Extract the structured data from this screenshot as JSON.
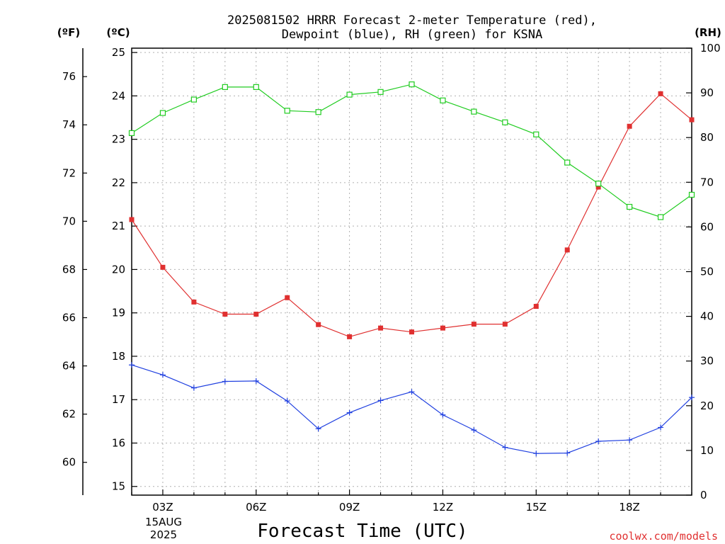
{
  "title_line1": "2025081502 HRRR Forecast 2-meter Temperature (red),",
  "title_line2": "Dewpoint (blue), RH (green) for KSNA",
  "unit_f": "(ºF)",
  "unit_c": "(ºC)",
  "unit_rh": "(RH)",
  "date_day": "15AUG",
  "date_year": "2025",
  "credit": "coolwx.com/models",
  "colors": {
    "temperature": "#e03030",
    "dewpoint": "#2040e0",
    "rh": "#20cc20",
    "grid": "#b0b0b0"
  },
  "chart_data": {
    "type": "line",
    "title": "2025081502 HRRR Forecast 2-meter Temperature (red), Dewpoint (blue), RH (green) for KSNA",
    "xlabel": "Forecast Time (UTC)",
    "x": [
      "02Z",
      "03Z",
      "04Z",
      "05Z",
      "06Z",
      "07Z",
      "08Z",
      "09Z",
      "10Z",
      "11Z",
      "12Z",
      "13Z",
      "14Z",
      "15Z",
      "16Z",
      "17Z",
      "18Z",
      "19Z",
      "20Z"
    ],
    "x_tick_labels": [
      "03Z",
      "06Z",
      "09Z",
      "12Z",
      "15Z",
      "18Z"
    ],
    "y_left_c": {
      "ylim": [
        14.8,
        25.1
      ],
      "ticks": [
        15,
        16,
        17,
        18,
        19,
        20,
        21,
        22,
        23,
        24,
        25
      ]
    },
    "y_left_f": {
      "ticks": [
        60,
        62,
        64,
        66,
        68,
        70,
        72,
        74,
        76
      ]
    },
    "y_right_rh": {
      "ylim": [
        0,
        100
      ],
      "ticks": [
        0,
        10,
        20,
        30,
        40,
        50,
        60,
        70,
        80,
        90,
        100
      ]
    },
    "grid": true,
    "series": [
      {
        "name": "Temperature",
        "axis": "C",
        "marker": "square-filled",
        "values": [
          21.15,
          20.05,
          19.25,
          18.97,
          18.97,
          19.35,
          18.73,
          18.45,
          18.65,
          18.56,
          18.65,
          18.74,
          18.74,
          19.15,
          20.45,
          21.9,
          23.3,
          24.05,
          23.45
        ]
      },
      {
        "name": "Dewpoint",
        "axis": "C",
        "marker": "plus",
        "values": [
          17.8,
          17.57,
          17.27,
          17.42,
          17.43,
          16.97,
          16.33,
          16.7,
          16.98,
          17.18,
          16.65,
          16.3,
          15.9,
          15.76,
          15.77,
          16.04,
          16.07,
          16.36,
          17.05
        ]
      },
      {
        "name": "RH",
        "axis": "RH",
        "marker": "square-open",
        "values": [
          81,
          85.5,
          88.5,
          91.3,
          91.3,
          86,
          85.7,
          89.6,
          90.2,
          91.9,
          88.3,
          85.8,
          83.4,
          80.7,
          74.4,
          69.7,
          64.5,
          62.2,
          67.2
        ]
      }
    ]
  }
}
